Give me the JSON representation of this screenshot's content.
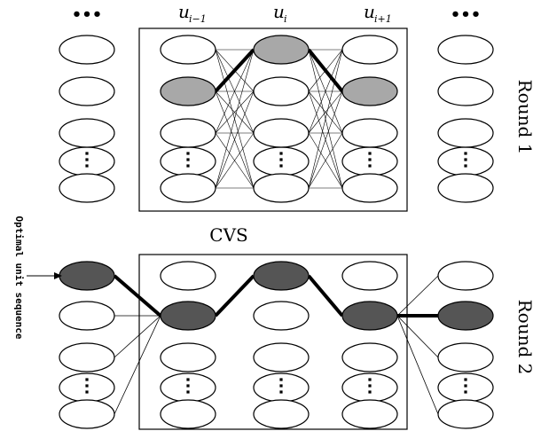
{
  "columns": {
    "left_dots": "•••",
    "u_prev": "u",
    "u_prev_sub": "i−1",
    "u_cur": "u",
    "u_cur_sub": "i",
    "u_next": "u",
    "u_next_sub": "i+1",
    "right_dots": "•••"
  },
  "labels": {
    "round1": "Round 1",
    "round2": "Round 2",
    "cvs": "CVS",
    "optimal": "Optimal unit sequence"
  },
  "colors": {
    "round1_selected": "#a8a8a8",
    "round2_selected": "#555555",
    "node_fill": "#ffffff",
    "stroke": "#000000"
  }
}
